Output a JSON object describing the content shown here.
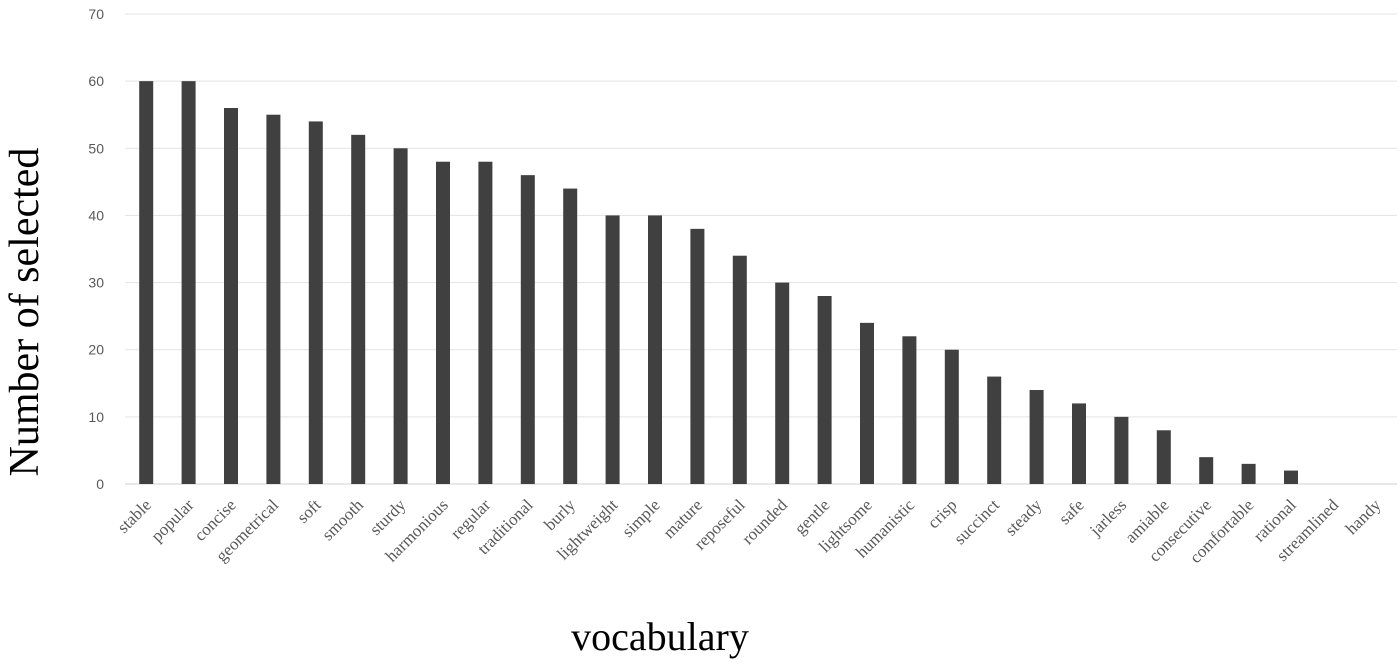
{
  "chart_data": {
    "type": "bar",
    "categories": [
      "stable",
      "popular",
      "concise",
      "geometrical",
      "soft",
      "smooth",
      "sturdy",
      "harmonious",
      "regular",
      "traditional",
      "burly",
      "lightweight",
      "simple",
      "mature",
      "reposeful",
      "rounded",
      "gentle",
      "lightsome",
      "humanistic",
      "crisp",
      "succinct",
      "steady",
      "safe",
      "jarless",
      "amiable",
      "consecutive",
      "comfortable",
      "rational",
      "streamlined",
      "handy"
    ],
    "values": [
      60,
      60,
      56,
      55,
      54,
      52,
      50,
      48,
      48,
      46,
      44,
      40,
      40,
      38,
      34,
      30,
      28,
      24,
      22,
      20,
      16,
      14,
      12,
      10,
      8,
      4,
      3,
      2,
      0,
      0
    ],
    "title": "",
    "xlabel": "vocabulary",
    "ylabel": "Number of selected",
    "ylim": [
      0,
      70
    ],
    "yticks": [
      0,
      10,
      20,
      30,
      40,
      50,
      60,
      70
    ],
    "grid": true,
    "bar_color": "#404040"
  }
}
